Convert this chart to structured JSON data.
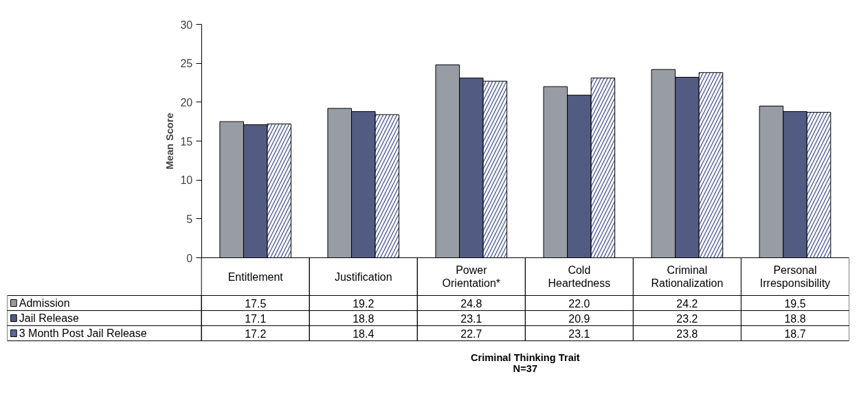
{
  "chart_data": {
    "type": "bar",
    "ylabel": "Mean Score",
    "annotations": [
      "Criminal Thinking Trait",
      "N=37"
    ],
    "categories": [
      "Entitlement",
      "Justification",
      "Power Orientation*",
      "Cold Heartedness",
      "Criminal Rationalization",
      "Personal Irresponsibility"
    ],
    "series": [
      {
        "name": "Admission",
        "color": "#989ca4",
        "values": [
          17.5,
          19.2,
          24.8,
          22.0,
          24.2,
          19.5
        ],
        "value_labels": [
          "17.5",
          "19.2",
          "24.8",
          "22.0",
          "24.2",
          "19.5"
        ]
      },
      {
        "name": "Jail Release",
        "color": "#525c82",
        "values": [
          17.1,
          18.8,
          23.1,
          20.9,
          23.2,
          18.8
        ],
        "value_labels": [
          "17.1",
          "18.8",
          "23.1",
          "20.9",
          "23.2",
          "18.8"
        ]
      },
      {
        "name": "3 Month Post Jail Release",
        "color": "#5a6898",
        "values": [
          17.2,
          18.4,
          22.7,
          23.1,
          23.8,
          18.7
        ],
        "value_labels": [
          "17.2",
          "18.4",
          "22.7",
          "23.1",
          "23.8",
          "18.7"
        ]
      }
    ],
    "ylim": [
      0,
      30
    ],
    "yticks": [
      0,
      5,
      10,
      15,
      20,
      25,
      30
    ],
    "grid": false,
    "legend": "bottom left"
  }
}
